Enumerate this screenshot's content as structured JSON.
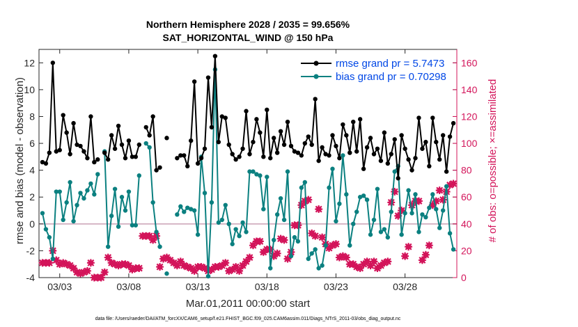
{
  "chart_data": {
    "type": "line",
    "title": "Northern Hemisphere 2028 / 2035 = 99.656%",
    "subtitle": "SAT_HORIZONTAL_WIND @ 150 hPa",
    "xlabel": "Mar.01,2011 00:00:00 start",
    "ylabel": "rmse and bias (model - observation)",
    "y2label": "# of obs: o=possible; ×=assimilated",
    "footnote": "data file: /Users/raeder/DAI/ATM_forcXX/CAM6_setup/f.e21.FHIST_BGC.f09_025.CAM6assim.011/Diags_NTrS_2011-03/obs_diag_output.nc",
    "x_unit": "day of March 2011 (fractional)",
    "xlim": [
      1.5,
      31.75
    ],
    "ylim": [
      -4,
      13
    ],
    "y2lim": [
      0,
      170
    ],
    "grid": false,
    "legend_position": "top-right",
    "xticks": [
      {
        "value": 3,
        "label": "03/03"
      },
      {
        "value": 8,
        "label": "03/08"
      },
      {
        "value": 13,
        "label": "03/13"
      },
      {
        "value": 18,
        "label": "03/18"
      },
      {
        "value": 23,
        "label": "03/23"
      },
      {
        "value": 28,
        "label": "03/28"
      }
    ],
    "yticks": [
      -4,
      -2,
      0,
      2,
      4,
      6,
      8,
      10,
      12
    ],
    "y2ticks": [
      0,
      20,
      40,
      60,
      80,
      100,
      120,
      140,
      160
    ],
    "zero_line": 0,
    "series": [
      {
        "name": "rmse grand pr = 5.7473",
        "color": "#000000",
        "marker": "dot",
        "axis": "left",
        "values": [
          4.6,
          4.5,
          5.3,
          12.0,
          5.4,
          5.5,
          8.1,
          6.8,
          5.2,
          7.5,
          5.9,
          5.8,
          5.4,
          4.9,
          8.0,
          4.6,
          4.8,
          null,
          5.3,
          4.8,
          6.6,
          5.6,
          7.3,
          5.9,
          4.9,
          6.2,
          5.0,
          5.0,
          5.9,
          null,
          7.2,
          6.6,
          8.0,
          4.0,
          4.2,
          null,
          6.4,
          null,
          null,
          4.9,
          5.1,
          5.1,
          4.3,
          6.2,
          10.6,
          4.5,
          4.9,
          5.6,
          10.9,
          7.2,
          12.5,
          6.1,
          8.0,
          7.9,
          5.9,
          5.2,
          4.8,
          5.0,
          5.6,
          8.4,
          5.2,
          6.1,
          7.8,
          6.8,
          5.0,
          8.5,
          4.9,
          6.4,
          5.3,
          6.9,
          5.9,
          7.6,
          5.8,
          5.4,
          5.3,
          5.1,
          6.0,
          6.5,
          5.9,
          9.3,
          4.7,
          5.7,
          5.2,
          5.1,
          6.6,
          5.8,
          4.9,
          7.4,
          6.6,
          5.3,
          7.6,
          5.4,
          7.8,
          4.1,
          5.7,
          6.4,
          5.2,
          5.6,
          4.7,
          6.8,
          4.5,
          5.2,
          6.3,
          3.4,
          6.6,
          5.6,
          4.8,
          4.0,
          4.9,
          7.9,
          5.6,
          6.1,
          4.3,
          7.9,
          6.1,
          4.8,
          6.6,
          3.9,
          6.5,
          7.5
        ]
      },
      {
        "name": "bias grand pr = 0.70298",
        "color": "#0b8080",
        "marker": "dot",
        "axis": "left",
        "values": [
          0.8,
          -0.4,
          -1.0,
          -2.6,
          2.4,
          2.4,
          0.3,
          1.6,
          3.1,
          0.2,
          1.4,
          2.3,
          1.9,
          2.5,
          3.0,
          2.2,
          3.7,
          null,
          5.4,
          -1.7,
          0.6,
          2.6,
          -0.2,
          2.0,
          1.0,
          2.4,
          -0.1,
          -0.1,
          3.6,
          null,
          6.0,
          5.7,
          1.6,
          -0.6,
          -1.7,
          null,
          -3.7,
          null,
          null,
          0.7,
          1.3,
          0.9,
          1.2,
          1.1,
          1.0,
          -0.8,
          5.0,
          2.3,
          -3.9,
          1.6,
          11.5,
          0.1,
          0.3,
          1.4,
          0.0,
          -1.5,
          -0.4,
          -0.9,
          0.1,
          -0.6,
          3.9,
          3.9,
          3.7,
          3.6,
          1.1,
          3.5,
          -3.3,
          -1.2,
          0.7,
          1.9,
          0.3,
          3.9,
          -2.4,
          -1.0,
          -1.3,
          2.7,
          3.1,
          -2.6,
          -2.2,
          -1.9,
          -3.3,
          -3.1,
          -1.6,
          2.7,
          4.1,
          0.2,
          1.5,
          5.1,
          2.2,
          -1.6,
          0.0,
          0.9,
          2.0,
          2.1,
          1.8,
          -0.8,
          0.3,
          2.6,
          -0.6,
          -0.4,
          -1.0,
          0.9,
          3.9,
          4.3,
          -0.8,
          0.8,
          2.5,
          0.8,
          2.2,
          -0.6,
          0.7,
          0.5,
          1.2,
          2.2,
          1.1,
          -0.3,
          1.0,
          2.8,
          -0.7,
          -1.9
        ]
      },
      {
        "name": "obs possible",
        "color": "#d3145a",
        "marker": "asterisk",
        "axis": "right",
        "values": [
          11,
          11,
          11,
          20,
          13,
          10,
          11,
          10,
          9,
          7,
          4,
          3,
          4,
          5,
          11,
          0,
          0,
          0,
          4,
          15,
          11,
          10,
          9,
          10,
          10,
          9,
          6,
          7,
          7,
          31,
          31,
          31,
          28,
          31,
          8,
          14,
          15,
          13,
          11,
          9,
          12,
          9,
          8,
          7,
          5,
          8,
          8,
          7,
          5,
          6,
          8,
          8,
          9,
          11,
          5,
          6,
          8,
          5,
          9,
          12,
          15,
          24,
          27,
          27,
          19,
          21,
          21,
          16,
          18,
          29,
          28,
          14,
          19,
          39,
          39,
          54,
          57,
          58,
          33,
          31,
          51,
          30,
          25,
          22,
          24,
          25,
          15,
          16,
          15,
          10,
          10,
          8,
          7,
          10,
          12,
          9,
          12,
          7,
          9,
          11,
          12,
          56,
          64,
          46,
          50,
          16,
          23,
          54,
          57,
          57,
          13,
          17,
          24,
          54,
          57,
          65,
          58,
          64,
          69,
          70
        ]
      },
      {
        "name": "obs assimilated",
        "color": "#d3145a",
        "marker": "x",
        "axis": "right",
        "values": [
          11,
          11,
          11,
          20,
          13,
          10,
          11,
          10,
          9,
          7,
          4,
          3,
          4,
          5,
          11,
          0,
          0,
          0,
          4,
          15,
          11,
          10,
          9,
          10,
          10,
          9,
          6,
          7,
          7,
          31,
          31,
          31,
          28,
          31,
          8,
          14,
          15,
          13,
          11,
          9,
          12,
          9,
          8,
          7,
          5,
          8,
          8,
          7,
          5,
          6,
          8,
          8,
          9,
          11,
          5,
          6,
          8,
          5,
          9,
          12,
          15,
          24,
          27,
          27,
          19,
          21,
          21,
          16,
          18,
          29,
          28,
          14,
          19,
          39,
          39,
          54,
          57,
          58,
          33,
          31,
          51,
          30,
          25,
          22,
          24,
          25,
          15,
          16,
          15,
          10,
          10,
          8,
          7,
          10,
          12,
          9,
          12,
          7,
          9,
          11,
          12,
          56,
          64,
          46,
          50,
          16,
          23,
          54,
          57,
          57,
          13,
          17,
          24,
          54,
          57,
          65,
          58,
          64,
          69,
          70
        ]
      }
    ]
  }
}
